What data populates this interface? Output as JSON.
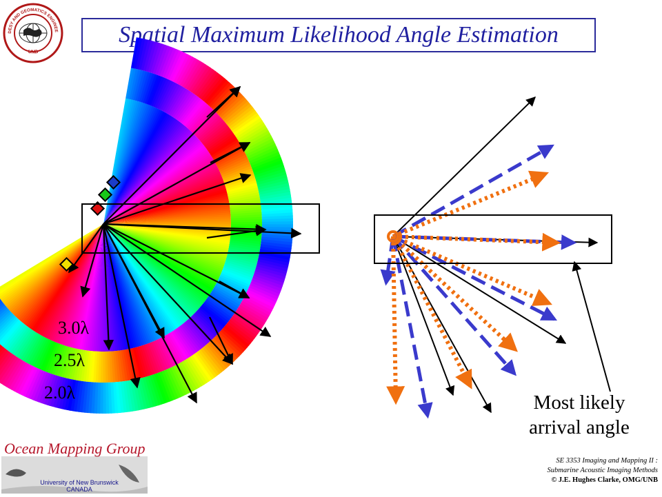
{
  "title": "Spatial Maximum Likelihood Angle Estimation",
  "logo": {
    "ring_text_top": "GEODESY AND GEOMATICS ENGINEERING",
    "ring_text_bottom": "UNB"
  },
  "left_diagram": {
    "ring_labels": [
      "3.0λ",
      "2.5λ",
      "2.0λ"
    ],
    "element_colors": [
      "#1a3cc8",
      "#18c818",
      "#e01010",
      "#f0e000"
    ]
  },
  "right_diagram": {
    "colors": {
      "solid": "#000000",
      "dashed": "#3a3acc",
      "dotted": "#f07010"
    },
    "annotation": [
      "Most likely",
      "arrival angle"
    ]
  },
  "footer": {
    "group_name": "Ocean Mapping Group",
    "university": [
      "University of New Brunswick",
      "CANADA"
    ],
    "course_lines": [
      "SE 3353 Imaging and Mapping II :",
      "Submarine Acoustic Imaging Methods"
    ],
    "credit": "© J.E. Hughes Clarke, OMG/UNB"
  }
}
